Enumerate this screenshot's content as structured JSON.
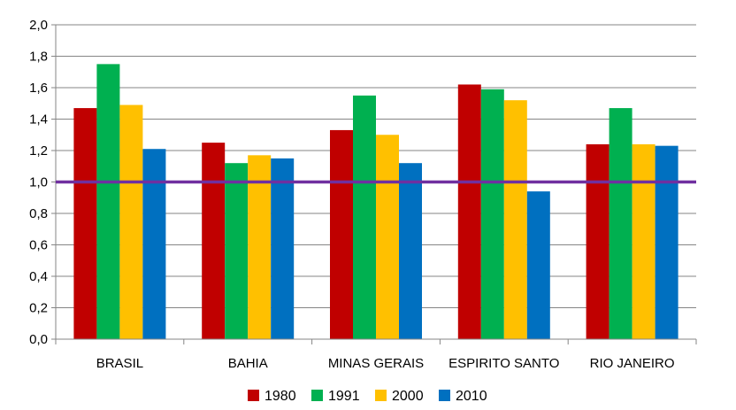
{
  "chart_data": {
    "type": "bar",
    "categories": [
      "BRASIL",
      "BAHIA",
      "MINAS GERAIS",
      "ESPIRITO SANTO",
      "RIO JANEIRO"
    ],
    "series": [
      {
        "name": "1980",
        "color": "#C00000",
        "values": [
          1.47,
          1.25,
          1.33,
          1.62,
          1.24
        ]
      },
      {
        "name": "1991",
        "color": "#00B050",
        "values": [
          1.75,
          1.12,
          1.55,
          1.59,
          1.47
        ]
      },
      {
        "name": "2000",
        "color": "#FFC000",
        "values": [
          1.49,
          1.17,
          1.3,
          1.52,
          1.24
        ]
      },
      {
        "name": "2010",
        "color": "#0070C0",
        "values": [
          1.21,
          1.15,
          1.12,
          0.94,
          1.23
        ]
      }
    ],
    "ylim": [
      0,
      2.0
    ],
    "yticks": [
      "0,0",
      "0,2",
      "0,4",
      "0,6",
      "0,8",
      "1,0",
      "1,2",
      "1,4",
      "1,6",
      "1,8",
      "2,0"
    ],
    "grid": true,
    "reference_line": {
      "value": 1.0,
      "color": "#7030A0"
    },
    "legend_position": "bottom"
  }
}
